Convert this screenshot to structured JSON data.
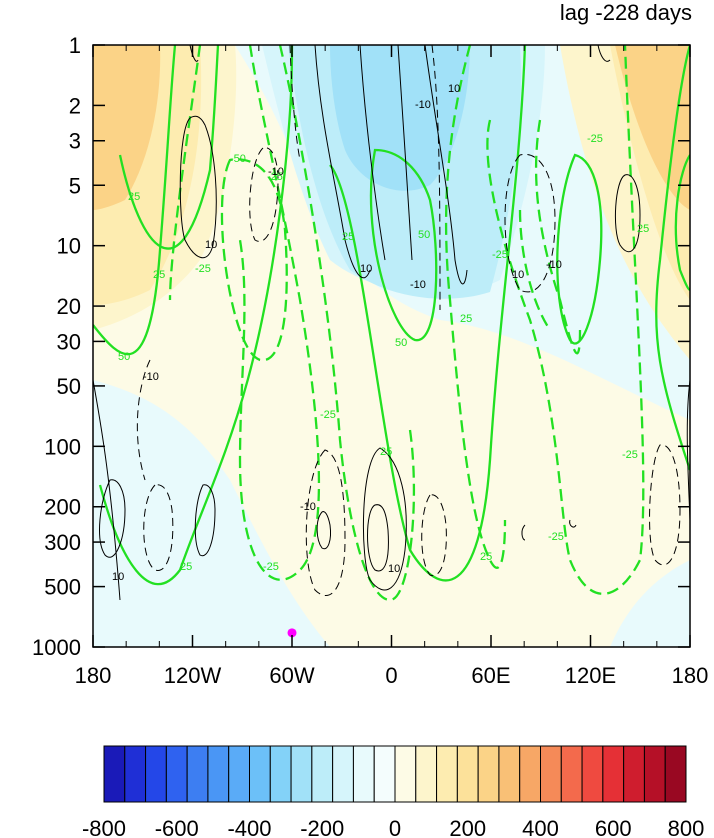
{
  "chart_data": {
    "type": "heatmap",
    "title": "lag -228 days",
    "xlabel": "",
    "ylabel": "",
    "x_ticks": [
      "180",
      "120W",
      "60W",
      "0",
      "60E",
      "120E",
      "180"
    ],
    "x_tick_values": [
      -180,
      -120,
      -60,
      0,
      60,
      120,
      180
    ],
    "y_ticks": [
      "1",
      "2",
      "3",
      "5",
      "10",
      "20",
      "30",
      "50",
      "100",
      "200",
      "300",
      "500",
      "1000"
    ],
    "y_tick_values": [
      1,
      2,
      3,
      5,
      10,
      20,
      30,
      50,
      100,
      200,
      300,
      500,
      1000
    ],
    "y_scale": "log",
    "y_reversed": true,
    "xlim": [
      -180,
      180
    ],
    "ylim": [
      1000,
      1
    ],
    "colorbar": {
      "min": -800,
      "max": 800,
      "step": 50,
      "labels": [
        "-800",
        "-600",
        "-400",
        "-200",
        "0",
        "200",
        "400",
        "600",
        "800"
      ],
      "label_values": [
        -800,
        -600,
        -400,
        -200,
        0,
        200,
        400,
        600,
        800
      ],
      "colors": [
        "#1a1ab8",
        "#1f2fd6",
        "#2447e8",
        "#2f62f0",
        "#3d7ef2",
        "#4a96f5",
        "#5aabf7",
        "#6cc0f8",
        "#83d2f8",
        "#a1e1f8",
        "#bdedf9",
        "#d6f5fb",
        "#e8fafc",
        "#f4fdfd",
        "#fdfbe6",
        "#fdf5cc",
        "#fdecb0",
        "#fce19a",
        "#fbd387",
        "#f9c076",
        "#f7a766",
        "#f58a58",
        "#f36a4c",
        "#ef4a40",
        "#e53036",
        "#cf1d2e",
        "#b51027",
        "#990822"
      ]
    },
    "contour_label_values": [
      -50,
      -25,
      -10,
      10,
      25,
      50
    ],
    "contour_sets": [
      "black thin (±10)",
      "green thick (±25, ±50)"
    ],
    "marker": {
      "lon": -60,
      "lev": 850,
      "color": "#ff00ff"
    }
  }
}
